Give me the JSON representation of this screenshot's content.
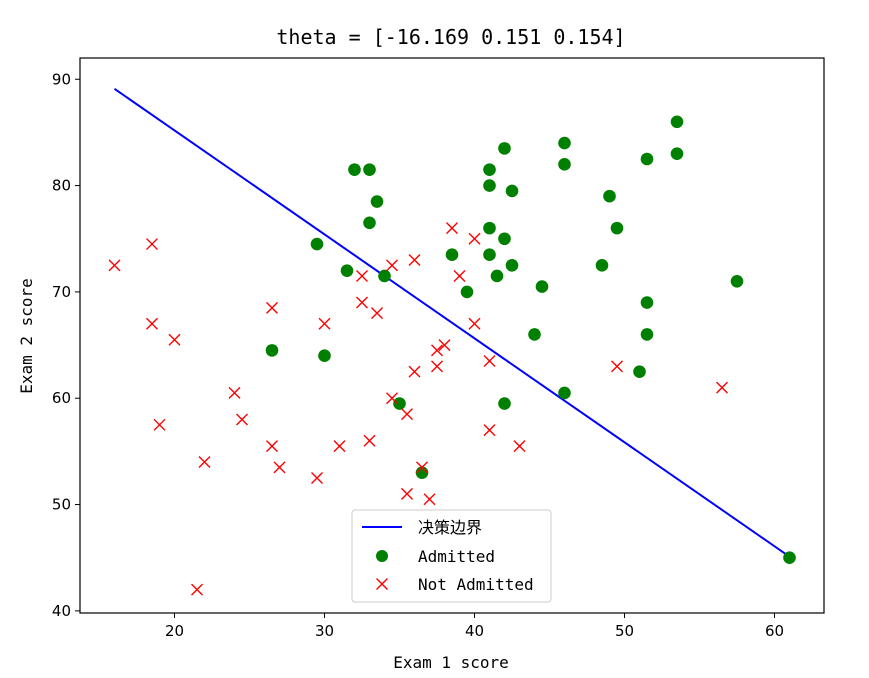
{
  "chart_data": {
    "type": "scatter",
    "title": "theta = [-16.169   0.151   0.154]",
    "xlabel": "Exam 1 score",
    "ylabel": "Exam 2 score",
    "xlim": [
      13.7,
      63.3
    ],
    "ylim": [
      39.8,
      92.0
    ],
    "xticks": [
      20,
      30,
      40,
      50,
      60
    ],
    "yticks": [
      40,
      50,
      60,
      70,
      80,
      90
    ],
    "grid": false,
    "legend_position": "bottom-center",
    "boundary": {
      "name": "决策边界",
      "color": "#0000ff",
      "x": [
        16,
        61
      ],
      "y": [
        89.1,
        45.1
      ]
    },
    "series": [
      {
        "name": "Admitted",
        "marker": "circle",
        "color": "#008000",
        "points": [
          [
            32,
            81.5
          ],
          [
            33,
            81.5
          ],
          [
            33.5,
            78.5
          ],
          [
            33,
            76.5
          ],
          [
            29.5,
            74.5
          ],
          [
            31.5,
            72
          ],
          [
            34,
            71.5
          ],
          [
            26.5,
            64.5
          ],
          [
            30,
            64
          ],
          [
            35,
            59.5
          ],
          [
            36.5,
            53
          ],
          [
            41,
            81.5
          ],
          [
            42,
            83.5
          ],
          [
            41,
            80
          ],
          [
            42.5,
            79.5
          ],
          [
            41,
            76
          ],
          [
            42,
            75
          ],
          [
            41,
            73.5
          ],
          [
            42.5,
            72.5
          ],
          [
            41.5,
            71.5
          ],
          [
            38.5,
            73.5
          ],
          [
            39.5,
            70
          ],
          [
            44.5,
            70.5
          ],
          [
            44,
            66
          ],
          [
            42,
            59.5
          ],
          [
            46,
            84
          ],
          [
            46,
            82
          ],
          [
            46,
            60.5
          ],
          [
            49,
            79
          ],
          [
            49.5,
            76
          ],
          [
            48.5,
            72.5
          ],
          [
            51.5,
            82.5
          ],
          [
            51.5,
            69
          ],
          [
            51.5,
            66
          ],
          [
            51,
            62.5
          ],
          [
            53.5,
            86
          ],
          [
            53.5,
            83
          ],
          [
            57.5,
            71
          ],
          [
            61,
            45
          ]
        ]
      },
      {
        "name": "Not Admitted",
        "marker": "x",
        "color": "#ff0000",
        "points": [
          [
            16,
            72.5
          ],
          [
            18.5,
            74.5
          ],
          [
            18.5,
            67
          ],
          [
            20,
            65.5
          ],
          [
            19,
            57.5
          ],
          [
            21.5,
            42
          ],
          [
            22,
            54
          ],
          [
            24,
            60.5
          ],
          [
            24.5,
            58
          ],
          [
            26.5,
            68.5
          ],
          [
            26.5,
            55.5
          ],
          [
            27,
            53.5
          ],
          [
            29.5,
            52.5
          ],
          [
            30,
            67
          ],
          [
            31,
            55.5
          ],
          [
            32.5,
            71.5
          ],
          [
            32.5,
            69
          ],
          [
            33,
            56
          ],
          [
            33.5,
            68
          ],
          [
            34.5,
            72.5
          ],
          [
            34.5,
            60
          ],
          [
            35.5,
            58.5
          ],
          [
            35.5,
            51
          ],
          [
            36,
            73
          ],
          [
            36,
            62.5
          ],
          [
            36.5,
            53.5
          ],
          [
            37,
            50.5
          ],
          [
            37.5,
            64.5
          ],
          [
            37.5,
            63
          ],
          [
            38,
            65
          ],
          [
            38.5,
            76
          ],
          [
            39,
            71.5
          ],
          [
            40,
            75
          ],
          [
            40,
            67
          ],
          [
            41,
            63.5
          ],
          [
            41,
            57
          ],
          [
            43,
            55.5
          ],
          [
            49.5,
            63
          ],
          [
            56.5,
            61
          ]
        ]
      }
    ]
  }
}
